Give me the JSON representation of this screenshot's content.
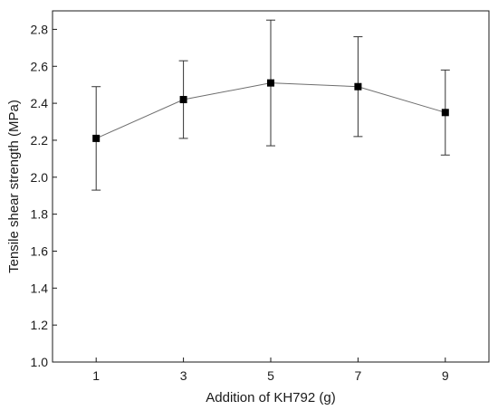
{
  "chart_data": {
    "type": "line",
    "x": [
      1,
      3,
      5,
      7,
      9
    ],
    "y": [
      2.21,
      2.42,
      2.51,
      2.49,
      2.35
    ],
    "error_upper": [
      2.49,
      2.63,
      2.85,
      2.76,
      2.58
    ],
    "error_lower": [
      1.93,
      2.21,
      2.17,
      2.22,
      2.12
    ],
    "x_ticks": [
      "1",
      "3",
      "5",
      "7",
      "9"
    ],
    "y_ticks": [
      "1.0",
      "1.2",
      "1.4",
      "1.6",
      "1.8",
      "2.0",
      "2.2",
      "2.4",
      "2.6",
      "2.8"
    ],
    "xlabel": "Addition of KH792 (g)",
    "ylabel": "Tensile shear strength (MPa)",
    "xlim": [
      0,
      10
    ],
    "ylim": [
      1.0,
      2.9
    ],
    "marker": "square",
    "grid": false,
    "line_color": "#6e6e6e",
    "marker_color": "#000000",
    "axis_color": "#1a1a1a"
  }
}
